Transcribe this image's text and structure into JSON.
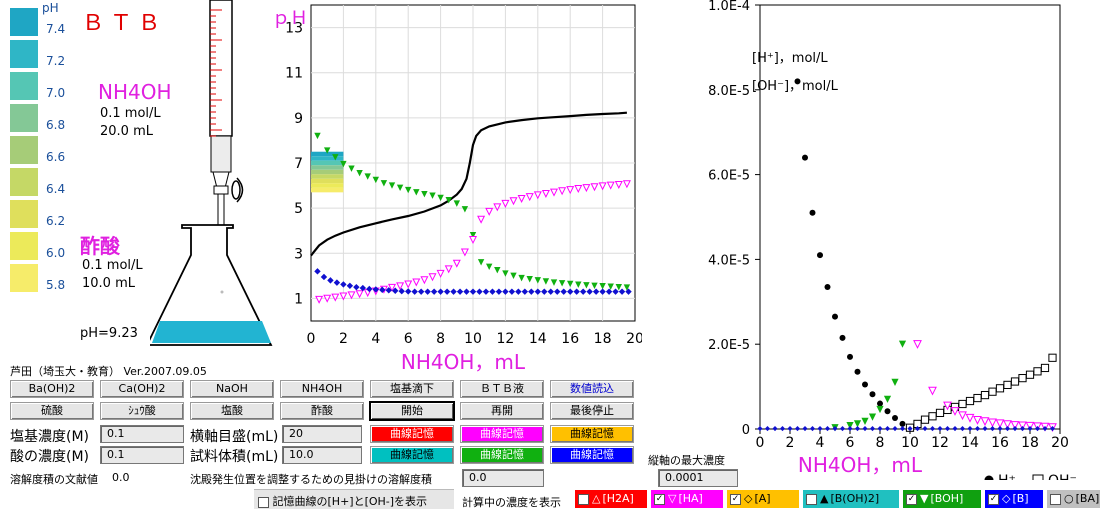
{
  "scale": {
    "title": "pH",
    "items": [
      {
        "v": "7.4",
        "c": "#1fa6c4"
      },
      {
        "v": "7.2",
        "c": "#2fb6c6"
      },
      {
        "v": "7.0",
        "c": "#55c6b4"
      },
      {
        "v": "6.8",
        "c": "#84c896"
      },
      {
        "v": "6.6",
        "c": "#a6cc78"
      },
      {
        "v": "6.4",
        "c": "#c5d866"
      },
      {
        "v": "6.2",
        "c": "#dfdf5c"
      },
      {
        "v": "6.0",
        "c": "#ecea5a"
      },
      {
        "v": "5.8",
        "c": "#f6ec6a"
      }
    ]
  },
  "indicator_name": "ＢＴＢ",
  "titrant": {
    "name": "NH4OH",
    "conc": "0.1 mol/L",
    "vol": "20.0 mL"
  },
  "analyte": {
    "name": "酢酸",
    "conc": "0.1 mol/L",
    "vol": "10.0 mL"
  },
  "ph_readout": "pH=9.23",
  "author": "芦田（埼玉大・教育） Ver.2007.09.05",
  "buttons": {
    "r1": [
      "Ba(OH)2",
      "Ca(OH)2",
      "NaOH",
      "NH4OH",
      "塩基滴下",
      "ＢＴＢ液",
      "数値読込"
    ],
    "r2": [
      "硫酸",
      "ｼｭｳ酸",
      "塩酸",
      "酢酸",
      "開始",
      "再開",
      "最後停止"
    ],
    "mem1": [
      "曲線記憶",
      "曲線記憶",
      "曲線記憶"
    ],
    "mem2": [
      "曲線記憶",
      "曲線記憶",
      "曲線記憶"
    ]
  },
  "form": {
    "base_conc_label": "塩基濃度(M)",
    "base_conc_value": "0.1",
    "acid_conc_label": "酸の濃度(M)",
    "acid_conc_value": "0.1",
    "axis_scale_label": "横軸目盛(mL)",
    "axis_scale_value": "20",
    "sample_vol_label": "試料体積(mL)",
    "sample_vol_value": "10.0",
    "ksp_lit_label": "溶解度積の文献値",
    "ksp_lit_value": "0.0",
    "ksp_app_label": "沈殿発生位置を調整するための見掛けの溶解度積",
    "ksp_app_value": "0.0",
    "max_conc_label": "縦軸の最大濃度",
    "max_conc_value": "0.0001",
    "show_mem_label": "記憶曲線の[H+]と[OH-]を表示",
    "calc_label": "計算中の濃度を表示"
  },
  "legend": [
    {
      "sym": "△",
      "label": "[H2A]",
      "bg": "#ff0000",
      "fg": "#ffffff",
      "checked": false
    },
    {
      "sym": "▽",
      "label": "[HA]",
      "bg": "#ff00ff",
      "fg": "#ffffff",
      "checked": true
    },
    {
      "sym": "◇",
      "label": "[A]",
      "bg": "#ffc000",
      "fg": "#000000",
      "checked": true
    },
    {
      "sym": "▲",
      "label": "[B(OH)2]",
      "bg": "#20c0c0",
      "fg": "#000000",
      "checked": false
    },
    {
      "sym": "▼",
      "label": "[BOH]",
      "bg": "#10a010",
      "fg": "#ffffff",
      "checked": true
    },
    {
      "sym": "◇",
      "label": "[B]",
      "bg": "#0000ff",
      "fg": "#ffffff",
      "checked": true
    },
    {
      "sym": "○",
      "label": "[BA]↓",
      "bg": "#c0c0c0",
      "fg": "#000000",
      "checked": false
    }
  ],
  "colors": {
    "mem1": [
      "#ff0000",
      "#ff00ff",
      "#ffc000"
    ],
    "mem2": [
      "#00c0c0",
      "#10b010",
      "#0000ff"
    ]
  },
  "chart_data": [
    {
      "type": "scatter",
      "title": "ｐＨ",
      "xlabel": "NH4OH，mL",
      "xlim": [
        0,
        20
      ],
      "ylim": [
        0,
        14
      ],
      "xticks": [
        "0",
        "2",
        "4",
        "6",
        "8",
        "10",
        "12",
        "14",
        "16",
        "18",
        "20"
      ],
      "yticks": [
        "1",
        "3",
        "5",
        "7",
        "9",
        "11",
        "13"
      ],
      "series": [
        {
          "kind": "line",
          "color": "#000000",
          "x": [
            0,
            0.5,
            1,
            1.5,
            2,
            3,
            4,
            5,
            6,
            7,
            8,
            8.5,
            9,
            9.3,
            9.6,
            9.8,
            10,
            10.2,
            10.5,
            11,
            12,
            13,
            14,
            15,
            16,
            17,
            18,
            19,
            19.5
          ],
          "y": [
            2.9,
            3.35,
            3.6,
            3.78,
            3.92,
            4.15,
            4.33,
            4.5,
            4.65,
            4.85,
            5.12,
            5.33,
            5.6,
            5.85,
            6.3,
            7.0,
            7.8,
            8.2,
            8.45,
            8.62,
            8.8,
            8.9,
            8.98,
            9.03,
            9.08,
            9.13,
            9.17,
            9.2,
            9.23
          ]
        },
        {
          "kind": "marker",
          "marker": "tri-down",
          "color": "#10b010",
          "x": [
            0.4,
            1,
            1.5,
            2,
            2.5,
            3,
            3.5,
            4,
            4.5,
            5,
            5.5,
            6,
            6.5,
            7,
            7.5,
            8,
            8.5,
            9,
            9.5,
            10,
            10.5,
            11,
            11.5,
            12,
            12.5,
            13,
            13.5,
            14,
            14.5,
            15,
            15.5,
            16,
            16.5,
            17,
            17.5,
            18,
            18.5,
            19,
            19.5
          ],
          "y": [
            8.2,
            7.55,
            7.25,
            6.95,
            6.75,
            6.55,
            6.4,
            6.25,
            6.1,
            6.0,
            5.9,
            5.8,
            5.7,
            5.62,
            5.55,
            5.45,
            5.35,
            5.2,
            4.95,
            3.8,
            2.6,
            2.4,
            2.25,
            2.1,
            2.0,
            1.9,
            1.85,
            1.8,
            1.75,
            1.7,
            1.67,
            1.64,
            1.61,
            1.58,
            1.56,
            1.54,
            1.52,
            1.5,
            1.48
          ]
        },
        {
          "kind": "marker",
          "marker": "tri-down-open",
          "color": "#ff00ff",
          "x": [
            0.5,
            1,
            1.5,
            2,
            2.5,
            3,
            3.5,
            4,
            4.5,
            5,
            5.5,
            6,
            6.5,
            7,
            7.5,
            8,
            8.5,
            9,
            9.5,
            10,
            10.5,
            11,
            11.5,
            12,
            12.5,
            13,
            13.5,
            14,
            14.5,
            15,
            15.5,
            16,
            16.5,
            17,
            17.5,
            18,
            18.5,
            19,
            19.5
          ],
          "y": [
            0.95,
            1.0,
            1.05,
            1.1,
            1.15,
            1.2,
            1.25,
            1.32,
            1.4,
            1.48,
            1.55,
            1.63,
            1.72,
            1.82,
            1.95,
            2.1,
            2.3,
            2.55,
            3.05,
            3.6,
            4.5,
            4.85,
            5.05,
            5.2,
            5.32,
            5.42,
            5.5,
            5.58,
            5.64,
            5.7,
            5.76,
            5.81,
            5.86,
            5.9,
            5.94,
            5.98,
            6.01,
            6.04,
            6.07
          ]
        },
        {
          "kind": "marker",
          "marker": "diamond",
          "color": "#1010d0",
          "x": [
            0.4,
            0.8,
            1.2,
            1.6,
            2,
            2.4,
            2.8,
            3.2,
            3.6,
            4,
            4.4,
            4.8,
            5.2,
            5.6,
            6,
            6.4,
            6.8,
            7.2,
            7.6,
            8,
            8.4,
            8.8,
            9.2,
            9.6,
            10,
            10.4,
            10.8,
            11.2,
            11.6,
            12,
            12.4,
            12.8,
            13.2,
            13.6,
            14,
            14.4,
            14.8,
            15.2,
            15.6,
            16,
            16.4,
            16.8,
            17.2,
            17.6,
            18,
            18.4,
            18.8,
            19.2,
            19.6
          ],
          "y": [
            2.2,
            1.95,
            1.8,
            1.7,
            1.62,
            1.56,
            1.5,
            1.46,
            1.42,
            1.4,
            1.38,
            1.36,
            1.34,
            1.32,
            1.31,
            1.3,
            1.3,
            1.3,
            1.3,
            1.3,
            1.3,
            1.3,
            1.3,
            1.3,
            1.3,
            1.3,
            1.3,
            1.3,
            1.3,
            1.3,
            1.3,
            1.3,
            1.3,
            1.3,
            1.3,
            1.3,
            1.3,
            1.3,
            1.3,
            1.3,
            1.3,
            1.3,
            1.3,
            1.3,
            1.3,
            1.3,
            1.3,
            1.3,
            1.3
          ]
        }
      ]
    },
    {
      "type": "scatter",
      "xlabel": "NH4OH，mL",
      "ylabel1": "[H⁺]，mol/L",
      "ylabel2": "[OH⁻]，mol/L",
      "xlim": [
        0,
        20
      ],
      "ylim": [
        0,
        0.0001
      ],
      "xticks": [
        "0",
        "2",
        "4",
        "6",
        "8",
        "10",
        "12",
        "14",
        "16",
        "18",
        "20"
      ],
      "yticks": [
        "0",
        "2.0E-5",
        "4.0E-5",
        "6.0E-5",
        "8.0E-5",
        "1.0E-4"
      ],
      "legend": {
        "h": "H⁺",
        "oh": "OH⁻"
      },
      "series": [
        {
          "name": "H⁺",
          "marker": "dot",
          "color": "#000000",
          "x": [
            2.5,
            3,
            3.5,
            4,
            4.5,
            5,
            5.5,
            6,
            6.5,
            7,
            7.5,
            8,
            8.5,
            9,
            9.5,
            10
          ],
          "y": [
            8.2e-05,
            6.4e-05,
            5.1e-05,
            4.1e-05,
            3.35e-05,
            2.65e-05,
            2.15e-05,
            1.7e-05,
            1.35e-05,
            1.05e-05,
            8.2e-06,
            6e-06,
            4.2e-06,
            2.6e-06,
            1.2e-06,
            3e-07
          ]
        },
        {
          "name": "OH⁻",
          "marker": "square-open",
          "color": "#000000",
          "x": [
            10,
            10.5,
            11,
            11.5,
            12,
            12.5,
            13,
            13.5,
            14,
            14.5,
            15,
            15.5,
            16,
            16.5,
            17,
            17.5,
            18,
            18.5,
            19,
            19.5
          ],
          "y": [
            3e-07,
            1.2e-06,
            2.2e-06,
            3e-06,
            3.8e-06,
            4.5e-06,
            5.2e-06,
            5.9e-06,
            6.6e-06,
            7.3e-06,
            8e-06,
            8.8e-06,
            9.6e-06,
            1.04e-05,
            1.12e-05,
            1.2e-05,
            1.28e-05,
            1.36e-05,
            1.44e-05,
            1.68e-05
          ]
        },
        {
          "name": "[BOH]",
          "marker": "tri-down",
          "color": "#10b010",
          "x": [
            5,
            6,
            6.5,
            7,
            7.5,
            8,
            8.5,
            9,
            9.5
          ],
          "y": [
            3e-07,
            8e-07,
            1.2e-06,
            1.8e-06,
            2.8e-06,
            4.6e-06,
            7e-06,
            1.1e-05,
            2e-05
          ]
        },
        {
          "name": "[HA]",
          "marker": "tri-down-open",
          "color": "#ff00ff",
          "x": [
            10.5,
            11.5,
            12.5,
            13,
            13.5,
            14,
            14.5,
            15,
            15.5,
            16,
            16.5,
            17,
            17.5,
            18,
            18.5,
            19,
            19.5
          ],
          "y": [
            2e-05,
            9e-06,
            5.5e-06,
            4.2e-06,
            3.2e-06,
            2.6e-06,
            2.1e-06,
            1.8e-06,
            1.5e-06,
            1.3e-06,
            1.1e-06,
            9e-07,
            8e-07,
            7e-07,
            6e-07,
            5e-07,
            4e-07
          ]
        },
        {
          "name": "[B]",
          "marker": "diamond",
          "color": "#1010d0",
          "x": [
            0,
            0.5,
            1,
            1.5,
            2,
            2.5,
            3,
            3.5,
            4,
            4.5,
            5,
            5.5,
            6,
            6.5,
            7,
            7.5,
            8,
            8.5,
            9,
            9.5,
            10,
            10.5,
            11,
            11.5,
            12,
            12.5,
            13,
            13.5,
            14,
            14.5,
            15,
            15.5,
            16,
            16.5,
            17,
            17.5,
            18,
            18.5,
            19,
            19.5
          ],
          "y": [
            1e-07,
            1e-07,
            1e-07,
            1e-07,
            1e-07,
            1e-07,
            1e-07,
            1e-07,
            1e-07,
            1e-07,
            1e-07,
            1e-07,
            1e-07,
            1e-07,
            1e-07,
            1e-07,
            1e-07,
            1e-07,
            1e-07,
            1e-07,
            1e-07,
            1e-07,
            1e-07,
            1e-07,
            1e-07,
            1e-07,
            1e-07,
            1e-07,
            1e-07,
            1e-07,
            1e-07,
            1e-07,
            1e-07,
            1e-07,
            1e-07,
            1e-07,
            1e-07,
            1e-07,
            1e-07,
            1e-07
          ]
        }
      ]
    }
  ]
}
